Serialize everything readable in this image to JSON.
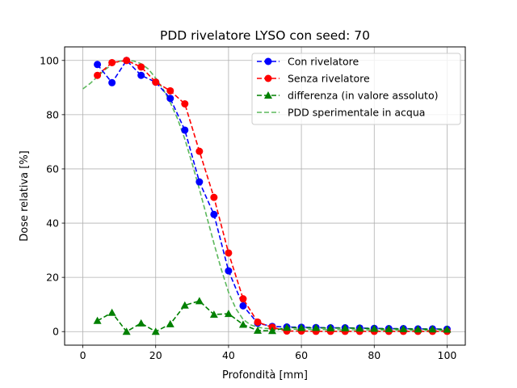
{
  "chart_data": {
    "type": "line",
    "title": "PDD rivelatore LYSO con seed: 70",
    "xlabel": "Profondità [mm]",
    "ylabel": "Dose relativa [%]",
    "xlim": [
      -5,
      105
    ],
    "ylim": [
      -5,
      105
    ],
    "xticks": [
      0,
      20,
      40,
      60,
      80,
      100
    ],
    "yticks": [
      0,
      20,
      40,
      60,
      80,
      100
    ],
    "grid": true,
    "legend_position": "top-right",
    "series": [
      {
        "name": "Con rivelatore",
        "color": "#0000ff",
        "style": "dashed",
        "marker": "circle",
        "x": [
          4,
          8,
          12,
          16,
          20,
          24,
          28,
          32,
          36,
          40,
          44,
          48,
          52,
          56,
          60,
          64,
          68,
          72,
          76,
          80,
          84,
          88,
          92,
          96,
          100
        ],
        "y": [
          98.5,
          91.8,
          100,
          94.5,
          92,
          86,
          74.3,
          55.2,
          43.2,
          22.4,
          9.5,
          3.1,
          1.9,
          1.7,
          1.6,
          1.5,
          1.4,
          1.4,
          1.3,
          1.2,
          1.1,
          1.1,
          1.0,
          1.0,
          0.9
        ]
      },
      {
        "name": "Senza rivelatore",
        "color": "#ff0000",
        "style": "dashed",
        "marker": "circle",
        "x": [
          4,
          8,
          12,
          16,
          20,
          24,
          28,
          32,
          36,
          40,
          44,
          48,
          52,
          56,
          60,
          64,
          68,
          72,
          76,
          80,
          84,
          88,
          92,
          96,
          100
        ],
        "y": [
          94.5,
          99.2,
          100,
          97.6,
          92,
          88.8,
          84,
          66.5,
          49.5,
          29,
          12.1,
          3.5,
          1.6,
          0.2,
          0.2,
          0.1,
          0.1,
          0.1,
          0.1,
          0.1,
          0.1,
          0.1,
          0.1,
          0.1,
          0.1
        ]
      },
      {
        "name": "differenza (in valore assoluto)",
        "color": "#008000",
        "style": "dashed",
        "marker": "triangle",
        "x": [
          4,
          8,
          12,
          16,
          20,
          24,
          28,
          32,
          36,
          40,
          44,
          48,
          52,
          56,
          60,
          64,
          68,
          72,
          76,
          80,
          84,
          88,
          92,
          96,
          100
        ],
        "y": [
          4,
          7,
          0,
          3.1,
          0,
          2.8,
          9.7,
          11.3,
          6.3,
          6.6,
          2.6,
          0.4,
          0.3,
          1.5,
          1.4,
          1.4,
          1.3,
          1.3,
          1.2,
          1.1,
          1.0,
          1.0,
          0.9,
          0.9,
          0.8
        ]
      },
      {
        "name": "PDD sperimentale in acqua",
        "color": "#5cb85c",
        "style": "dashed",
        "marker": "none",
        "x": [
          0,
          2,
          4,
          6,
          8,
          10,
          12,
          14,
          16,
          18,
          20,
          22,
          24,
          26,
          28,
          30,
          32,
          34,
          36,
          38,
          40,
          42,
          44,
          46,
          48,
          50,
          52,
          54,
          56,
          60,
          70,
          80,
          90,
          100
        ],
        "y": [
          89.5,
          91.5,
          94,
          96.5,
          98.5,
          99.7,
          100,
          99.8,
          98.8,
          96.8,
          93.5,
          89.5,
          84.5,
          78.5,
          71,
          62,
          52.5,
          42.5,
          32.5,
          23,
          14.5,
          8.5,
          4.5,
          2.5,
          1.6,
          1.2,
          1.0,
          0.9,
          0.9,
          0.8,
          0.7,
          0.6,
          0.5,
          0.4
        ]
      }
    ]
  }
}
